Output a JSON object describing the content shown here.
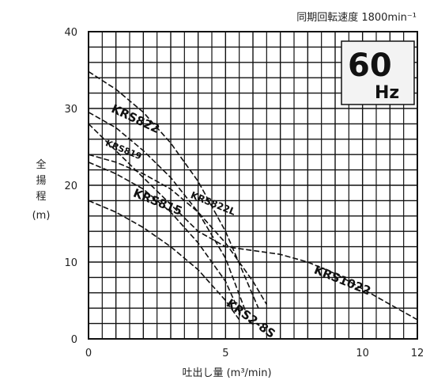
{
  "chart_data": {
    "type": "line",
    "header_text": "同期回転速度 1800min⁻¹",
    "frequency": {
      "value": "60",
      "unit": "Hz"
    },
    "xlabel": "吐出し量 (m³/min)",
    "ylabel": [
      "全",
      "揚",
      "程",
      "(m)"
    ],
    "xlim": [
      0,
      12
    ],
    "ylim": [
      0,
      40
    ],
    "x_ticks": [
      0,
      5,
      10,
      12
    ],
    "y_ticks": [
      0,
      10,
      20,
      30,
      40
    ],
    "grid": true,
    "series": [
      {
        "name": "KRS822",
        "x": [
          0,
          1,
          2,
          3,
          4,
          5,
          6.2
        ],
        "y": [
          34.8,
          32.5,
          29.5,
          25.5,
          20.5,
          14,
          4
        ]
      },
      {
        "name": "KRS819",
        "x": [
          0,
          1,
          2,
          3,
          4,
          5,
          5.9
        ],
        "y": [
          29.5,
          27.5,
          24.5,
          21,
          16.5,
          10.5,
          2
        ]
      },
      {
        "name": "KRS822L",
        "x": [
          0,
          1,
          2,
          3,
          4,
          5,
          6,
          6.5
        ],
        "y": [
          24,
          23,
          21.5,
          19.5,
          16.5,
          12.5,
          7.5,
          4.5
        ]
      },
      {
        "name": "KRS815",
        "x": [
          0,
          1,
          2,
          3,
          4,
          5,
          5.5
        ],
        "y": [
          23,
          21.5,
          19.5,
          16.5,
          12.5,
          7.5,
          3.5
        ]
      },
      {
        "name": "KRS2-8S",
        "x": [
          0,
          1,
          2,
          3,
          4,
          5,
          5.5
        ],
        "y": [
          18,
          16.5,
          14.5,
          12,
          9,
          5,
          2.5
        ]
      },
      {
        "name": "KRS1022",
        "x": [
          0,
          2,
          4,
          5,
          6,
          7,
          8,
          9,
          10,
          11,
          12
        ],
        "y": [
          28,
          21,
          14,
          12,
          11.5,
          11,
          10,
          8.5,
          6.5,
          4.5,
          2.5
        ]
      }
    ]
  }
}
